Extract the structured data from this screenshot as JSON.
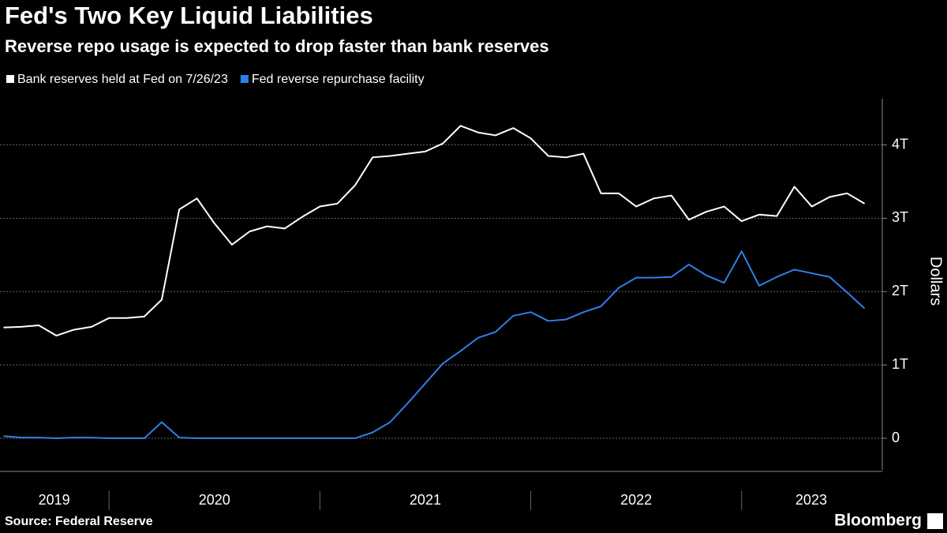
{
  "chart_data": {
    "type": "line",
    "title": "Fed's Two Key Liquid Liabilities",
    "subtitle": "Reverse repo usage is expected to drop faster than bank reserves",
    "y_label": "Dollars",
    "source": "Source: Federal Reserve",
    "brand": "Bloomberg",
    "x": [
      2019.5,
      2019.583,
      2019.667,
      2019.75,
      2019.833,
      2019.917,
      2020,
      2020.083,
      2020.167,
      2020.25,
      2020.333,
      2020.417,
      2020.5,
      2020.583,
      2020.667,
      2020.75,
      2020.833,
      2020.917,
      2021,
      2021.083,
      2021.167,
      2021.25,
      2021.333,
      2021.417,
      2021.5,
      2021.583,
      2021.667,
      2021.75,
      2021.833,
      2021.917,
      2022,
      2022.083,
      2022.167,
      2022.25,
      2022.333,
      2022.417,
      2022.5,
      2022.583,
      2022.667,
      2022.75,
      2022.833,
      2022.917,
      2023,
      2023.083,
      2023.167,
      2023.25,
      2023.333,
      2023.417,
      2023.5,
      2023.583
    ],
    "series": [
      {
        "name": "Bank reserves held at Fed on 7/26/23",
        "color": "#ffffff",
        "values": [
          1.51,
          1.52,
          1.54,
          1.4,
          1.48,
          1.52,
          1.64,
          1.64,
          1.66,
          1.89,
          3.12,
          3.27,
          2.93,
          2.64,
          2.82,
          2.89,
          2.86,
          3.02,
          3.16,
          3.2,
          3.45,
          3.83,
          3.85,
          3.88,
          3.91,
          4.02,
          4.26,
          4.17,
          4.13,
          4.23,
          4.09,
          3.85,
          3.83,
          3.88,
          3.34,
          3.34,
          3.16,
          3.27,
          3.31,
          2.98,
          3.09,
          3.16,
          2.96,
          3.05,
          3.03,
          3.43,
          3.16,
          3.29,
          3.34,
          3.2
        ]
      },
      {
        "name": "Fed reverse repurchase facility",
        "color": "#2f7fe8",
        "values": [
          0.03,
          0.01,
          0.01,
          0,
          0.01,
          0.01,
          0,
          0,
          0,
          0.22,
          0.01,
          0,
          0,
          0,
          0,
          0,
          0,
          0,
          0,
          0,
          0,
          0.08,
          0.22,
          0.48,
          0.75,
          1.02,
          1.19,
          1.37,
          1.45,
          1.67,
          1.72,
          1.6,
          1.62,
          1.72,
          1.8,
          2.05,
          2.19,
          2.19,
          2.2,
          2.37,
          2.22,
          2.12,
          2.55,
          2.08,
          2.2,
          2.3,
          2.25,
          2.2,
          1.99,
          1.77
        ]
      }
    ],
    "xlim": [
      2019.483,
      2023.667
    ],
    "xticks": [
      {
        "value": 2019.74,
        "label": "2019"
      },
      {
        "value": 2020.5,
        "label": "2020"
      },
      {
        "value": 2021.5,
        "label": "2021"
      },
      {
        "value": 2022.5,
        "label": "2022"
      },
      {
        "value": 2023.33,
        "label": "2023"
      }
    ],
    "ylim": [
      -0.43,
      4.63
    ],
    "yticks": [
      0,
      {
        "value": 1,
        "label": "1T"
      },
      {
        "value": 2,
        "label": "2T"
      },
      {
        "value": 3,
        "label": "3T"
      },
      {
        "value": 4,
        "label": "4T"
      }
    ],
    "grid": true
  }
}
